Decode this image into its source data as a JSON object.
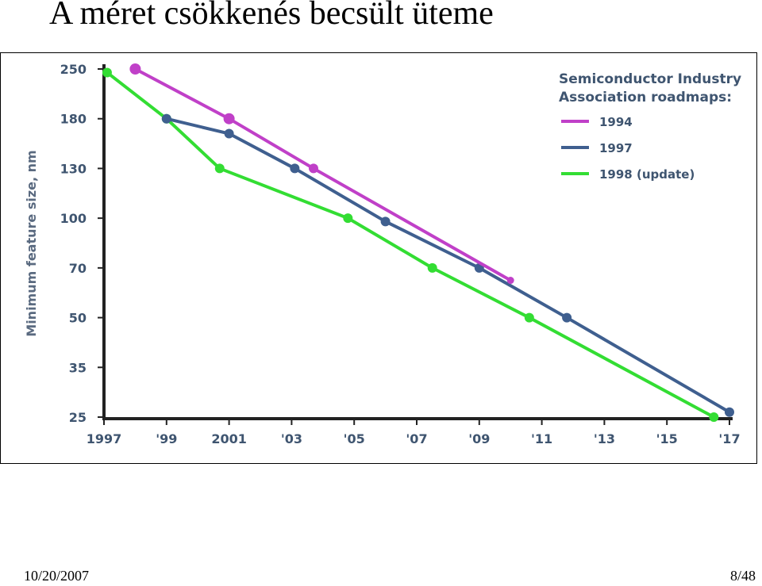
{
  "slide": {
    "title": "A méret csökkenés becsült üteme",
    "footer_date": "10/20/2007",
    "page_number": "8/48"
  },
  "chart_data": {
    "type": "line",
    "title": "",
    "xlabel": "",
    "ylabel": "Minimum feature size, nm",
    "legend": {
      "title_line1": "Semiconductor Industry",
      "title_line2": "Association roadmaps:",
      "placement": "top-right"
    },
    "x_ticks": [
      "1997",
      "'99",
      "2001",
      "'03",
      "'05",
      "'07",
      "'09",
      "'11",
      "'13",
      "'15",
      "'17"
    ],
    "x_tick_values": [
      1997,
      1999,
      2001,
      2003,
      2005,
      2007,
      2009,
      2011,
      2013,
      2015,
      2017
    ],
    "y_ticks": [
      "250",
      "180",
      "130",
      "100",
      "70",
      "50",
      "35",
      "25"
    ],
    "y_tick_values": [
      250,
      180,
      130,
      100,
      70,
      50,
      35,
      25
    ],
    "y_scale": "categorical-log-like",
    "xlim": [
      1997,
      2017
    ],
    "grid": false,
    "series": [
      {
        "name": "1994",
        "color": "#c040c8",
        "points": [
          {
            "x": 1998.0,
            "y": 250
          },
          {
            "x": 2001.0,
            "y": 180
          },
          {
            "x": 2003.7,
            "y": 130
          },
          {
            "x": 2010.0,
            "y": 65
          }
        ]
      },
      {
        "name": "1997",
        "color": "#3f5f8f",
        "points": [
          {
            "x": 1999.0,
            "y": 180
          },
          {
            "x": 2001.0,
            "y": 165
          },
          {
            "x": 2003.1,
            "y": 130
          },
          {
            "x": 2006.0,
            "y": 98
          },
          {
            "x": 2009.0,
            "y": 70
          },
          {
            "x": 2011.8,
            "y": 50
          },
          {
            "x": 2017.0,
            "y": 26
          }
        ]
      },
      {
        "name": "1998 (update)",
        "color": "#33dd33",
        "points": [
          {
            "x": 1997.1,
            "y": 245
          },
          {
            "x": 1999.0,
            "y": 180
          },
          {
            "x": 2000.7,
            "y": 130
          },
          {
            "x": 2004.8,
            "y": 100
          },
          {
            "x": 2007.5,
            "y": 70
          },
          {
            "x": 2010.6,
            "y": 50
          },
          {
            "x": 2016.5,
            "y": 25
          }
        ]
      }
    ]
  }
}
